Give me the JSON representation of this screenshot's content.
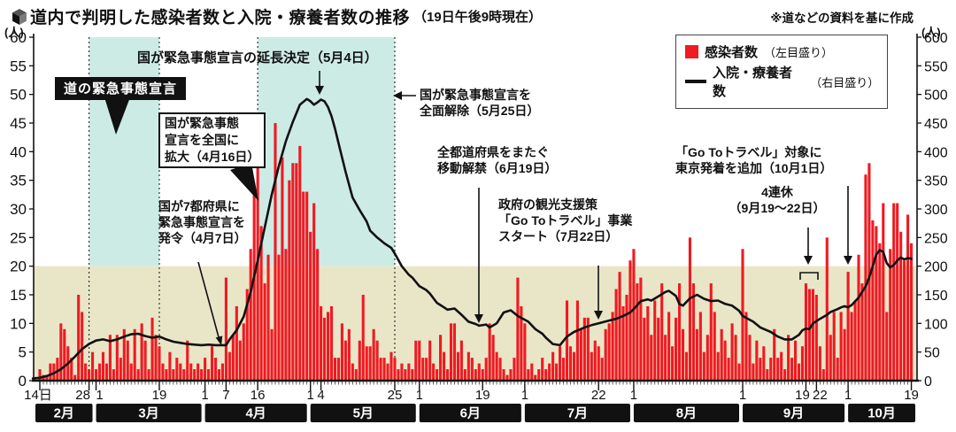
{
  "header": {
    "title": "道内で判明した感染者数と入院・療養者数の推移",
    "title_suffix": "（19日午後9時現在）",
    "source_note": "※道などの資料を基に作成"
  },
  "axes": {
    "left_unit": "(人)",
    "right_unit": "(人)",
    "left_ticks": [
      0,
      5,
      10,
      15,
      20,
      25,
      30,
      35,
      40,
      45,
      50,
      55,
      60
    ],
    "right_ticks": [
      0,
      50,
      100,
      150,
      200,
      250,
      300,
      350,
      400,
      450,
      500,
      550,
      600
    ]
  },
  "legend": {
    "items": [
      {
        "label": "感染者数",
        "scale_note": "（左目盛り）",
        "swatch": "red-square",
        "color": "#ef1a22"
      },
      {
        "label": "入院・療養者数",
        "scale_note": "（右目盛り）",
        "swatch": "black-line",
        "color": "#111111"
      }
    ]
  },
  "annotations": {
    "hokkaido_soe": {
      "text": "道の緊急事態宣言"
    },
    "extension": {
      "text": "国が緊急事態宣言の延長決定（5月4日）"
    },
    "expand": {
      "l1": "国が緊急事態",
      "l2": "宣言を全国に",
      "l3": "拡大（4月16日）"
    },
    "declare": {
      "l1": "国が7都府県に",
      "l2": "緊急事態宣言を",
      "l3": "発令（4月7日）"
    },
    "lift": {
      "l1": "国が緊急事態宣言を",
      "l2": "全面解除（5月25日）"
    },
    "move_free": {
      "l1": "全都道府県をまたぐ",
      "l2": "移動解禁（6月19日）"
    },
    "goto_start": {
      "l1": "政府の観光支援策",
      "l2": "「Go Toトラベル」事業",
      "l3": "スタート（7月22日）"
    },
    "goto_tokyo": {
      "l1": "「Go Toトラベル」対象に",
      "l2": "東京発着を追加（10月1日）"
    },
    "renkyu": {
      "l1": "4連休",
      "l2": "（9月19～22日）"
    }
  },
  "chart_data": {
    "type": "bar+line",
    "title": "道内で判明した感染者数と入院・療養者数の推移（19日午後9時現在）",
    "x_start_date": "2月14日",
    "x_end_date": "10月19日",
    "left_axis_range": [
      0,
      60
    ],
    "right_axis_range": [
      0,
      600
    ],
    "grid": false,
    "threshold_band": {
      "max_left_value": 20,
      "color": "#e9e6c8"
    },
    "highlight_bands": [
      {
        "name": "道の緊急事態宣言期間",
        "start_day": 14,
        "end_day": 34,
        "color": "#cdebe5"
      },
      {
        "name": "国の緊急事態宣言期間",
        "start_day": 62,
        "end_day": 101,
        "color": "#cdebe5"
      }
    ],
    "x_ticks": [
      {
        "label": "14日",
        "day": 0,
        "dx": -2
      },
      {
        "label": "28",
        "day": 14,
        "dx": -7
      },
      {
        "label": "1",
        "day": 16,
        "dx": 4
      },
      {
        "label": "19",
        "day": 34
      },
      {
        "label": "1",
        "day": 47
      },
      {
        "label": "7",
        "day": 53
      },
      {
        "label": "16",
        "day": 62
      },
      {
        "label": "1",
        "day": 77
      },
      {
        "label": "4",
        "day": 80
      },
      {
        "label": "25",
        "day": 101
      },
      {
        "label": "1",
        "day": 108
      },
      {
        "label": "19",
        "day": 126
      },
      {
        "label": "1",
        "day": 138
      },
      {
        "label": "22",
        "day": 159
      },
      {
        "label": "1",
        "day": 169
      },
      {
        "label": "1",
        "day": 200
      },
      {
        "label": "19",
        "day": 218,
        "dx": -4
      },
      {
        "label": "22",
        "day": 221,
        "dx": 4
      },
      {
        "label": "1",
        "day": 230
      },
      {
        "label": "19",
        "day": 248
      }
    ],
    "months": [
      {
        "label": "2月",
        "start_day": 0,
        "end_day": 15
      },
      {
        "label": "3月",
        "start_day": 16,
        "end_day": 46
      },
      {
        "label": "4月",
        "start_day": 47,
        "end_day": 76
      },
      {
        "label": "5月",
        "start_day": 77,
        "end_day": 107
      },
      {
        "label": "6月",
        "start_day": 108,
        "end_day": 137
      },
      {
        "label": "7月",
        "start_day": 138,
        "end_day": 168
      },
      {
        "label": "8月",
        "start_day": 169,
        "end_day": 199
      },
      {
        "label": "9月",
        "start_day": 200,
        "end_day": 229
      },
      {
        "label": "10月",
        "start_day": 230,
        "end_day": 248
      }
    ],
    "series": [
      {
        "name": "感染者数",
        "type": "bar",
        "axis": "left",
        "color": "#ef1a22",
        "values": [
          2,
          1,
          1,
          3,
          3,
          4,
          10,
          9,
          6,
          4,
          1,
          15,
          12,
          3,
          2,
          5,
          2,
          3,
          5,
          3,
          8,
          2,
          8,
          4,
          9,
          7,
          3,
          9,
          2,
          10,
          7,
          2,
          11,
          8,
          6,
          3,
          2,
          5,
          2,
          4,
          3,
          2,
          7,
          3,
          2,
          3,
          2,
          4,
          2,
          6,
          4,
          2,
          3,
          18,
          5,
          8,
          13,
          7,
          10,
          16,
          23,
          33,
          38,
          27,
          17,
          22,
          9,
          45,
          22,
          39,
          23,
          35,
          38,
          38,
          41,
          33,
          33,
          26,
          31,
          23,
          13,
          11,
          12,
          13,
          4,
          4,
          10,
          7,
          9,
          3,
          2,
          7,
          15,
          6,
          6,
          9,
          7,
          4,
          4,
          3,
          5,
          4,
          2,
          3,
          2,
          3,
          2,
          7,
          7,
          4,
          4,
          7,
          3,
          2,
          8,
          5,
          2,
          10,
          10,
          5,
          7,
          2,
          5,
          4,
          2,
          3,
          2,
          4,
          10,
          8,
          5,
          4,
          2,
          1,
          2,
          4,
          18,
          13,
          10,
          2,
          3,
          1,
          2,
          4,
          2,
          3,
          5,
          3,
          6,
          4,
          14,
          6,
          5,
          14,
          9,
          11,
          11,
          5,
          7,
          6,
          4,
          9,
          10,
          12,
          16,
          19,
          13,
          15,
          21,
          23,
          17,
          18,
          11,
          13,
          8,
          14,
          11,
          17,
          8,
          12,
          6,
          11,
          17,
          9,
          5,
          25,
          17,
          9,
          12,
          5,
          8,
          17,
          12,
          5,
          9,
          7,
          4,
          10,
          8,
          3,
          23,
          12,
          8,
          3,
          7,
          4,
          6,
          2,
          4,
          9,
          4,
          5,
          2,
          8,
          4,
          7,
          3,
          6,
          17,
          16,
          16,
          15,
          6,
          2,
          25,
          8,
          12,
          4,
          12,
          9,
          19,
          12,
          14,
          22,
          17,
          36,
          38,
          28,
          27,
          24,
          31,
          12,
          23,
          31,
          31,
          26,
          21,
          29,
          24
        ]
      },
      {
        "name": "入院・療養者数",
        "type": "line",
        "axis": "right",
        "color": "#111111",
        "keypoints": [
          [
            -2,
            4
          ],
          [
            0,
            5
          ],
          [
            2,
            8
          ],
          [
            4,
            13
          ],
          [
            6,
            20
          ],
          [
            8,
            30
          ],
          [
            10,
            42
          ],
          [
            12,
            55
          ],
          [
            14,
            64
          ],
          [
            16,
            70
          ],
          [
            18,
            72
          ],
          [
            20,
            69
          ],
          [
            22,
            72
          ],
          [
            24,
            77
          ],
          [
            26,
            81
          ],
          [
            28,
            82
          ],
          [
            30,
            78
          ],
          [
            32,
            75
          ],
          [
            34,
            77
          ],
          [
            36,
            72
          ],
          [
            38,
            68
          ],
          [
            40,
            66
          ],
          [
            42,
            64
          ],
          [
            44,
            63
          ],
          [
            46,
            62
          ],
          [
            48,
            63
          ],
          [
            50,
            62
          ],
          [
            53,
            62
          ],
          [
            54,
            72
          ],
          [
            56,
            88
          ],
          [
            58,
            112
          ],
          [
            60,
            155
          ],
          [
            62,
            210
          ],
          [
            64,
            268
          ],
          [
            66,
            325
          ],
          [
            68,
            375
          ],
          [
            70,
            418
          ],
          [
            72,
            452
          ],
          [
            74,
            482
          ],
          [
            76,
            492
          ],
          [
            77,
            488
          ],
          [
            78,
            482
          ],
          [
            79,
            486
          ],
          [
            80,
            491
          ],
          [
            81,
            488
          ],
          [
            82,
            478
          ],
          [
            83,
            462
          ],
          [
            84,
            440
          ],
          [
            85,
            415
          ],
          [
            86,
            390
          ],
          [
            87,
            365
          ],
          [
            88,
            342
          ],
          [
            89,
            320
          ],
          [
            91,
            298
          ],
          [
            93,
            278
          ],
          [
            94,
            262
          ],
          [
            96,
            250
          ],
          [
            98,
            240
          ],
          [
            100,
            232
          ],
          [
            101,
            222
          ],
          [
            103,
            200
          ],
          [
            105,
            185
          ],
          [
            106,
            180
          ],
          [
            108,
            165
          ],
          [
            110,
            158
          ],
          [
            111,
            152
          ],
          [
            113,
            136
          ],
          [
            115,
            128
          ],
          [
            116,
            124
          ],
          [
            118,
            126
          ],
          [
            120,
            115
          ],
          [
            122,
            103
          ],
          [
            124,
            99
          ],
          [
            125,
            96
          ],
          [
            127,
            98
          ],
          [
            128,
            93
          ],
          [
            130,
            100
          ],
          [
            132,
            119
          ],
          [
            134,
            123
          ],
          [
            136,
            113
          ],
          [
            139,
            103
          ],
          [
            141,
            90
          ],
          [
            143,
            82
          ],
          [
            144,
            75
          ],
          [
            146,
            64
          ],
          [
            148,
            62
          ],
          [
            150,
            77
          ],
          [
            152,
            85
          ],
          [
            155,
            93
          ],
          [
            157,
            97
          ],
          [
            159,
            100
          ],
          [
            162,
            105
          ],
          [
            164,
            108
          ],
          [
            166,
            113
          ],
          [
            168,
            119
          ],
          [
            169,
            125
          ],
          [
            171,
            139
          ],
          [
            173,
            142
          ],
          [
            174,
            140
          ],
          [
            176,
            147
          ],
          [
            178,
            155
          ],
          [
            179,
            157
          ],
          [
            181,
            148
          ],
          [
            182,
            134
          ],
          [
            183,
            131
          ],
          [
            185,
            144
          ],
          [
            187,
            150
          ],
          [
            189,
            143
          ],
          [
            191,
            139
          ],
          [
            193,
            140
          ],
          [
            195,
            134
          ],
          [
            197,
            131
          ],
          [
            199,
            122
          ],
          [
            200,
            113
          ],
          [
            203,
            103
          ],
          [
            205,
            93
          ],
          [
            208,
            85
          ],
          [
            210,
            77
          ],
          [
            212,
            72
          ],
          [
            214,
            72
          ],
          [
            216,
            80
          ],
          [
            217,
            88
          ],
          [
            218,
            91
          ],
          [
            219,
            90
          ],
          [
            220,
            100
          ],
          [
            222,
            108
          ],
          [
            224,
            115
          ],
          [
            225,
            120
          ],
          [
            227,
            125
          ],
          [
            228,
            128
          ],
          [
            229,
            130
          ],
          [
            230,
            128
          ],
          [
            231,
            132
          ],
          [
            233,
            145
          ],
          [
            235,
            165
          ],
          [
            236,
            180
          ],
          [
            237,
            200
          ],
          [
            238,
            220
          ],
          [
            239,
            228
          ],
          [
            240,
            225
          ],
          [
            241,
            205
          ],
          [
            242,
            198
          ],
          [
            243,
            202
          ],
          [
            244,
            210
          ],
          [
            245,
            215
          ],
          [
            246,
            212
          ],
          [
            247,
            214
          ],
          [
            248,
            213
          ]
        ]
      }
    ]
  }
}
